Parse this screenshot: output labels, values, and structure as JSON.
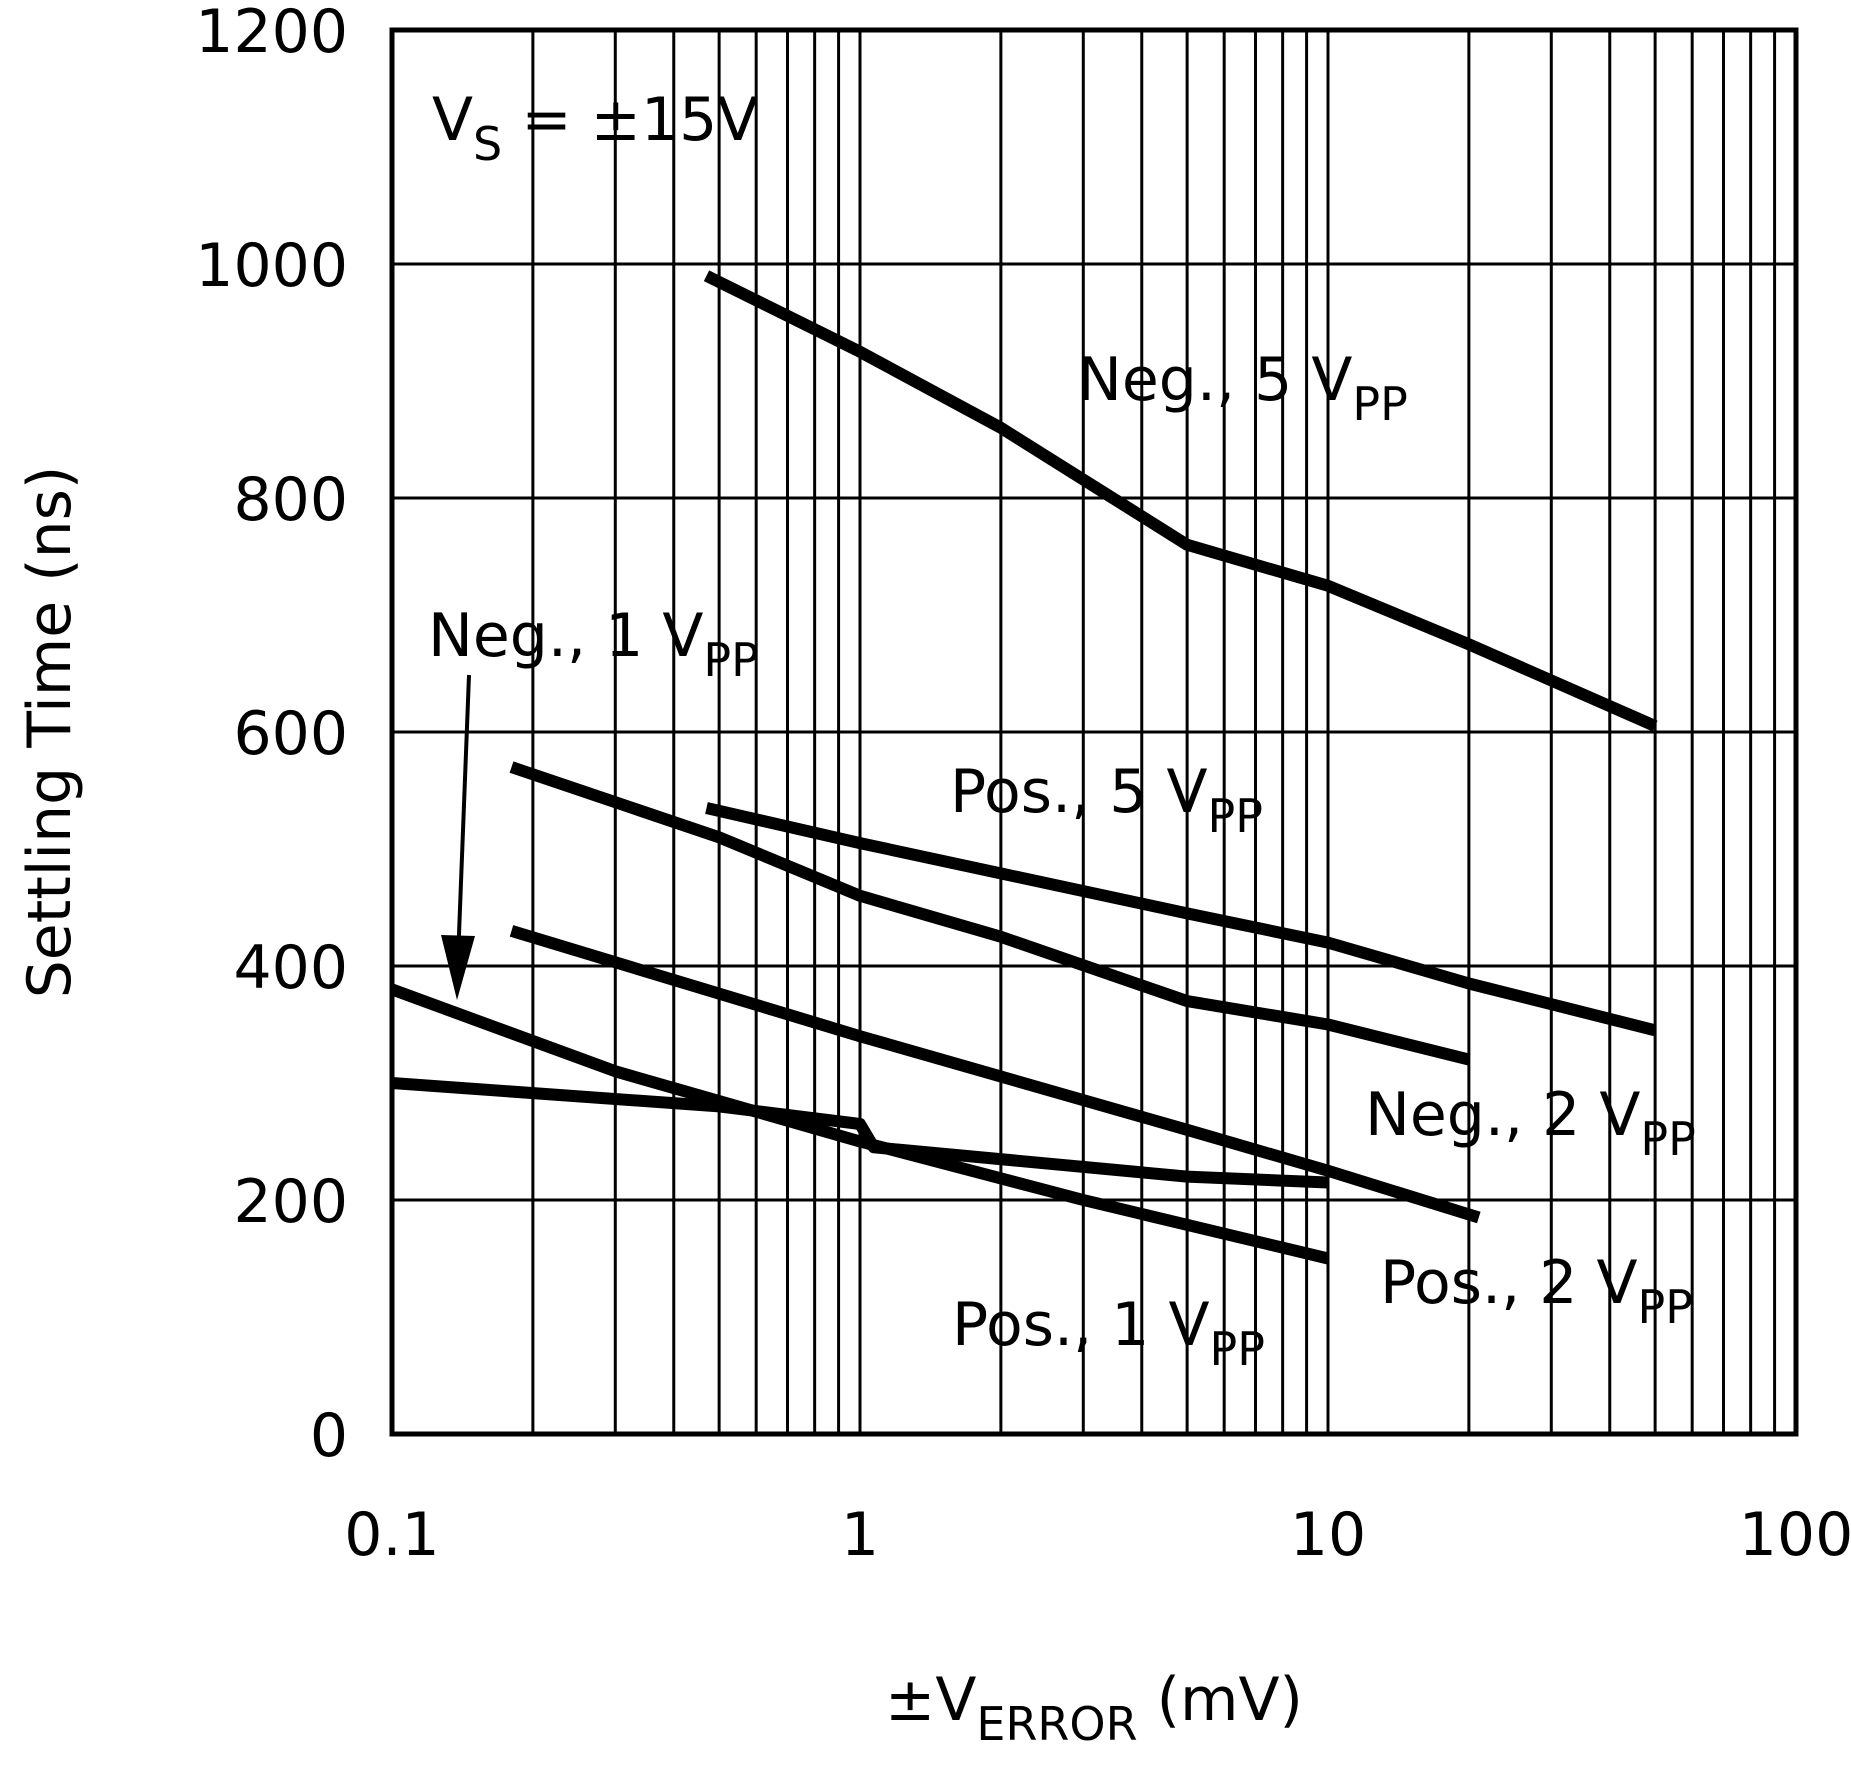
{
  "chart_data": {
    "type": "line",
    "title": "",
    "xlabel": {
      "prefix": "±V",
      "sub": "ERROR",
      "suffix": " (mV)"
    },
    "ylabel": "Settling Time (ns)",
    "xscale": "log",
    "xlim": [
      0.1,
      100
    ],
    "ylim": [
      0,
      1200
    ],
    "xticks": [
      {
        "value": 0.1,
        "label": "0.1"
      },
      {
        "value": 1,
        "label": "1"
      },
      {
        "value": 10,
        "label": "10"
      },
      {
        "value": 100,
        "label": "100"
      }
    ],
    "yticks": [
      {
        "value": 0,
        "label": "0"
      },
      {
        "value": 200,
        "label": "200"
      },
      {
        "value": 400,
        "label": "400"
      },
      {
        "value": 600,
        "label": "600"
      },
      {
        "value": 800,
        "label": "800"
      },
      {
        "value": 1000,
        "label": "1000"
      },
      {
        "value": 1200,
        "label": "1200"
      }
    ],
    "grid": true,
    "annotation": {
      "main": "V",
      "sub": "S",
      "rest": " = ±15V"
    },
    "series": [
      {
        "name": "Neg., 5 VPP",
        "label_main": "Neg., 5 V",
        "label_sub": "PP",
        "points": [
          [
            0.47,
            990
          ],
          [
            1,
            925
          ],
          [
            2,
            860
          ],
          [
            5,
            760
          ],
          [
            10,
            725
          ],
          [
            20,
            675
          ],
          [
            50,
            605
          ]
        ]
      },
      {
        "name": "Pos., 5 VPP",
        "label_main": "Pos., 5 V",
        "label_sub": "PP",
        "points": [
          [
            0.47,
            535
          ],
          [
            1,
            505
          ],
          [
            5,
            445
          ],
          [
            10,
            420
          ],
          [
            20,
            385
          ],
          [
            50,
            345
          ]
        ]
      },
      {
        "name": "Neg., 2 VPP",
        "label_main": "Neg., 2 V",
        "label_sub": "PP",
        "points": [
          [
            0.18,
            570
          ],
          [
            0.5,
            510
          ],
          [
            1,
            460
          ],
          [
            2,
            425
          ],
          [
            5,
            370
          ],
          [
            10,
            350
          ],
          [
            20,
            320
          ]
        ]
      },
      {
        "name": "Pos., 2 VPP",
        "label_main": "Pos., 2 V",
        "label_sub": "PP",
        "points": [
          [
            0.18,
            430
          ],
          [
            1,
            340
          ],
          [
            5,
            260
          ],
          [
            10,
            225
          ],
          [
            21,
            185
          ]
        ]
      },
      {
        "name": "Neg., 1 VPP",
        "label_main": "Neg., 1 V",
        "label_sub": "PP",
        "points": [
          [
            0.1,
            380
          ],
          [
            0.3,
            310
          ],
          [
            1,
            250
          ],
          [
            3,
            200
          ],
          [
            10,
            150
          ]
        ]
      },
      {
        "name": "Pos., 1 VPP",
        "label_main": "Pos., 1 V",
        "label_sub": "PP",
        "points": [
          [
            0.1,
            300
          ],
          [
            0.5,
            280
          ],
          [
            1,
            265
          ],
          [
            1.07,
            245
          ],
          [
            5,
            220
          ],
          [
            10,
            215
          ]
        ]
      }
    ]
  }
}
